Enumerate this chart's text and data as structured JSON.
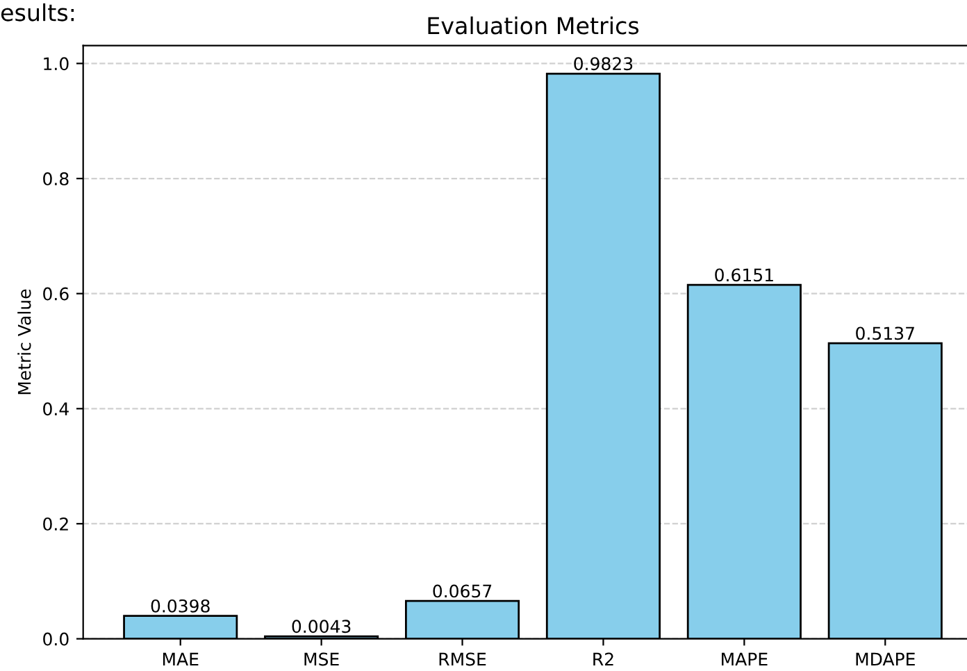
{
  "chart_data": {
    "type": "bar",
    "title": "Evaluation Metrics",
    "ylabel": "Metric Value",
    "categories": [
      "MAE",
      "MSE",
      "RMSE",
      "R2",
      "MAPE",
      "MDAPE"
    ],
    "values": [
      0.0398,
      0.0043,
      0.0657,
      0.9823,
      0.6151,
      0.5137
    ],
    "color": "#87ceeb",
    "data_labels": true,
    "ylim": [
      0,
      1.031
    ],
    "yticks": [
      {
        "value": 0,
        "label": "0.0"
      },
      {
        "value": 0.2,
        "label": "0.2"
      },
      {
        "value": 0.4,
        "label": "0.4"
      },
      {
        "value": 0.6,
        "label": "0.6"
      },
      {
        "value": 0.8,
        "label": "0.8"
      },
      {
        "value": 1,
        "label": "1.0"
      }
    ],
    "grid": "y",
    "annotations": [
      "esults:"
    ]
  }
}
